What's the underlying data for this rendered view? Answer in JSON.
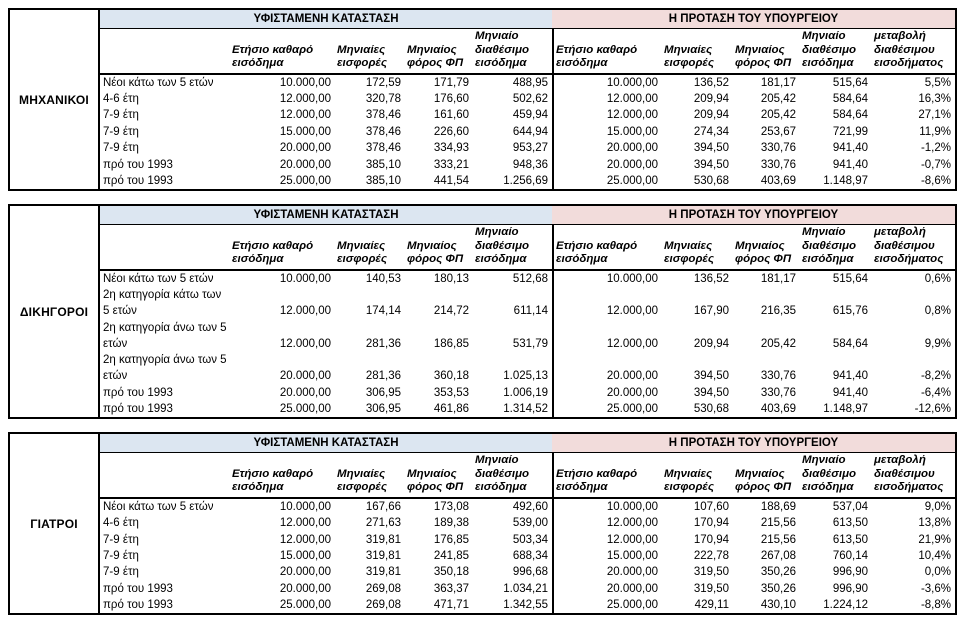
{
  "band_titles": {
    "current": "ΥΦΙΣΤΑΜΕΝΗ ΚΑΤΑΣΤΑΣΗ",
    "proposal": "Η ΠΡΟΤΑΣΗ ΤΟΥ ΥΠΟΥΡΓΕΙΟΥ"
  },
  "column_headers": {
    "current": [
      "Ετήσιο καθαρό εισόδημα",
      "Μηνιαίες εισφορές",
      "Μηνιαίος φόρος ΦΠ",
      "Μηνιαίο διαθέσιμο εισόδημα"
    ],
    "proposal": [
      "Ετήσιο καθαρό εισόδημα",
      "Μηνιαίες εισφορές",
      "Μηνιαίος φόρος ΦΠ",
      "Μηνιαίο διαθέσιμο εισόδημα",
      "μεταβολή διαθέσιμου εισοδήματος"
    ]
  },
  "colors": {
    "current_band": "#dce6f1",
    "proposal_band": "#f2dcdb",
    "border": "#000000"
  },
  "sections": [
    {
      "group_label": "ΜΗΧΑΝΙΚΟΙ",
      "rows": [
        {
          "label": "Νέοι κάτω των 5 ετών",
          "current": [
            "10.000,00",
            "172,59",
            "171,79",
            "488,95"
          ],
          "proposal": [
            "10.000,00",
            "136,52",
            "181,17",
            "515,64"
          ],
          "change": "5,5%"
        },
        {
          "label": "4-6 έτη",
          "current": [
            "12.000,00",
            "320,78",
            "176,60",
            "502,62"
          ],
          "proposal": [
            "12.000,00",
            "209,94",
            "205,42",
            "584,64"
          ],
          "change": "16,3%"
        },
        {
          "label": "7-9 έτη",
          "current": [
            "12.000,00",
            "378,46",
            "161,60",
            "459,94"
          ],
          "proposal": [
            "12.000,00",
            "209,94",
            "205,42",
            "584,64"
          ],
          "change": "27,1%"
        },
        {
          "label": "7-9 έτη",
          "current": [
            "15.000,00",
            "378,46",
            "226,60",
            "644,94"
          ],
          "proposal": [
            "15.000,00",
            "274,34",
            "253,67",
            "721,99"
          ],
          "change": "11,9%"
        },
        {
          "label": "7-9 έτη",
          "current": [
            "20.000,00",
            "378,46",
            "334,93",
            "953,27"
          ],
          "proposal": [
            "20.000,00",
            "394,50",
            "330,76",
            "941,40"
          ],
          "change": "-1,2%"
        },
        {
          "label": "πρό του 1993",
          "current": [
            "20.000,00",
            "385,10",
            "333,21",
            "948,36"
          ],
          "proposal": [
            "20.000,00",
            "394,50",
            "330,76",
            "941,40"
          ],
          "change": "-0,7%"
        },
        {
          "label": "πρό του 1993",
          "current": [
            "25.000,00",
            "385,10",
            "441,54",
            "1.256,69"
          ],
          "proposal": [
            "25.000,00",
            "530,68",
            "403,69",
            "1.148,97"
          ],
          "change": "-8,6%"
        }
      ]
    },
    {
      "group_label": "ΔΙΚΗΓΟΡΟΙ",
      "rows": [
        {
          "label": "Νέοι κάτω των 5 ετών",
          "current": [
            "10.000,00",
            "140,53",
            "180,13",
            "512,68"
          ],
          "proposal": [
            "10.000,00",
            "136,52",
            "181,17",
            "515,64"
          ],
          "change": "0,6%"
        },
        {
          "label": "2η κατηγορία κάτω των 5 ετών",
          "current": [
            "12.000,00",
            "174,14",
            "214,72",
            "611,14"
          ],
          "proposal": [
            "12.000,00",
            "167,90",
            "216,35",
            "615,76"
          ],
          "change": "0,8%"
        },
        {
          "label": "2η κατηγορία άνω των 5 ετών",
          "current": [
            "12.000,00",
            "281,36",
            "186,85",
            "531,79"
          ],
          "proposal": [
            "12.000,00",
            "209,94",
            "205,42",
            "584,64"
          ],
          "change": "9,9%"
        },
        {
          "label": "2η κατηγορία άνω των 5 ετών",
          "current": [
            "20.000,00",
            "281,36",
            "360,18",
            "1.025,13"
          ],
          "proposal": [
            "20.000,00",
            "394,50",
            "330,76",
            "941,40"
          ],
          "change": "-8,2%"
        },
        {
          "label": "πρό του 1993",
          "current": [
            "20.000,00",
            "306,95",
            "353,53",
            "1.006,19"
          ],
          "proposal": [
            "20.000,00",
            "394,50",
            "330,76",
            "941,40"
          ],
          "change": "-6,4%"
        },
        {
          "label": "πρό του 1993",
          "current": [
            "25.000,00",
            "306,95",
            "461,86",
            "1.314,52"
          ],
          "proposal": [
            "25.000,00",
            "530,68",
            "403,69",
            "1.148,97"
          ],
          "change": "-12,6%"
        }
      ]
    },
    {
      "group_label": "ΓΙΑΤΡΟΙ",
      "rows": [
        {
          "label": "Νέοι κάτω των 5 ετών",
          "current": [
            "10.000,00",
            "167,66",
            "173,08",
            "492,60"
          ],
          "proposal": [
            "10.000,00",
            "107,60",
            "188,69",
            "537,04"
          ],
          "change": "9,0%"
        },
        {
          "label": "4-6 έτη",
          "current": [
            "12.000,00",
            "271,63",
            "189,38",
            "539,00"
          ],
          "proposal": [
            "12.000,00",
            "170,94",
            "215,56",
            "613,50"
          ],
          "change": "13,8%"
        },
        {
          "label": "7-9 έτη",
          "current": [
            "12.000,00",
            "319,81",
            "176,85",
            "503,34"
          ],
          "proposal": [
            "12.000,00",
            "170,94",
            "215,56",
            "613,50"
          ],
          "change": "21,9%"
        },
        {
          "label": "7-9 έτη",
          "current": [
            "15.000,00",
            "319,81",
            "241,85",
            "688,34"
          ],
          "proposal": [
            "15.000,00",
            "222,78",
            "267,08",
            "760,14"
          ],
          "change": "10,4%"
        },
        {
          "label": "7-9 έτη",
          "current": [
            "20.000,00",
            "319,81",
            "350,18",
            "996,68"
          ],
          "proposal": [
            "20.000,00",
            "319,50",
            "350,26",
            "996,90"
          ],
          "change": "0,0%"
        },
        {
          "label": "πρό του 1993",
          "current": [
            "20.000,00",
            "269,08",
            "363,37",
            "1.034,21"
          ],
          "proposal": [
            "20.000,00",
            "319,50",
            "350,26",
            "996,90"
          ],
          "change": "-3,6%"
        },
        {
          "label": "πρό του 1993",
          "current": [
            "25.000,00",
            "269,08",
            "471,71",
            "1.342,55"
          ],
          "proposal": [
            "25.000,00",
            "429,11",
            "430,10",
            "1.224,12"
          ],
          "change": "-8,8%"
        }
      ]
    }
  ]
}
